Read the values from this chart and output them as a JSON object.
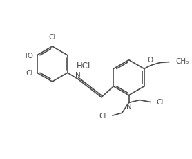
{
  "background_color": "#ffffff",
  "line_color": "#4a4a4a",
  "text_color": "#4a4a4a",
  "line_width": 1.2,
  "font_size": 7.5,
  "fig_width": 2.72,
  "fig_height": 2.25,
  "dpi": 100
}
